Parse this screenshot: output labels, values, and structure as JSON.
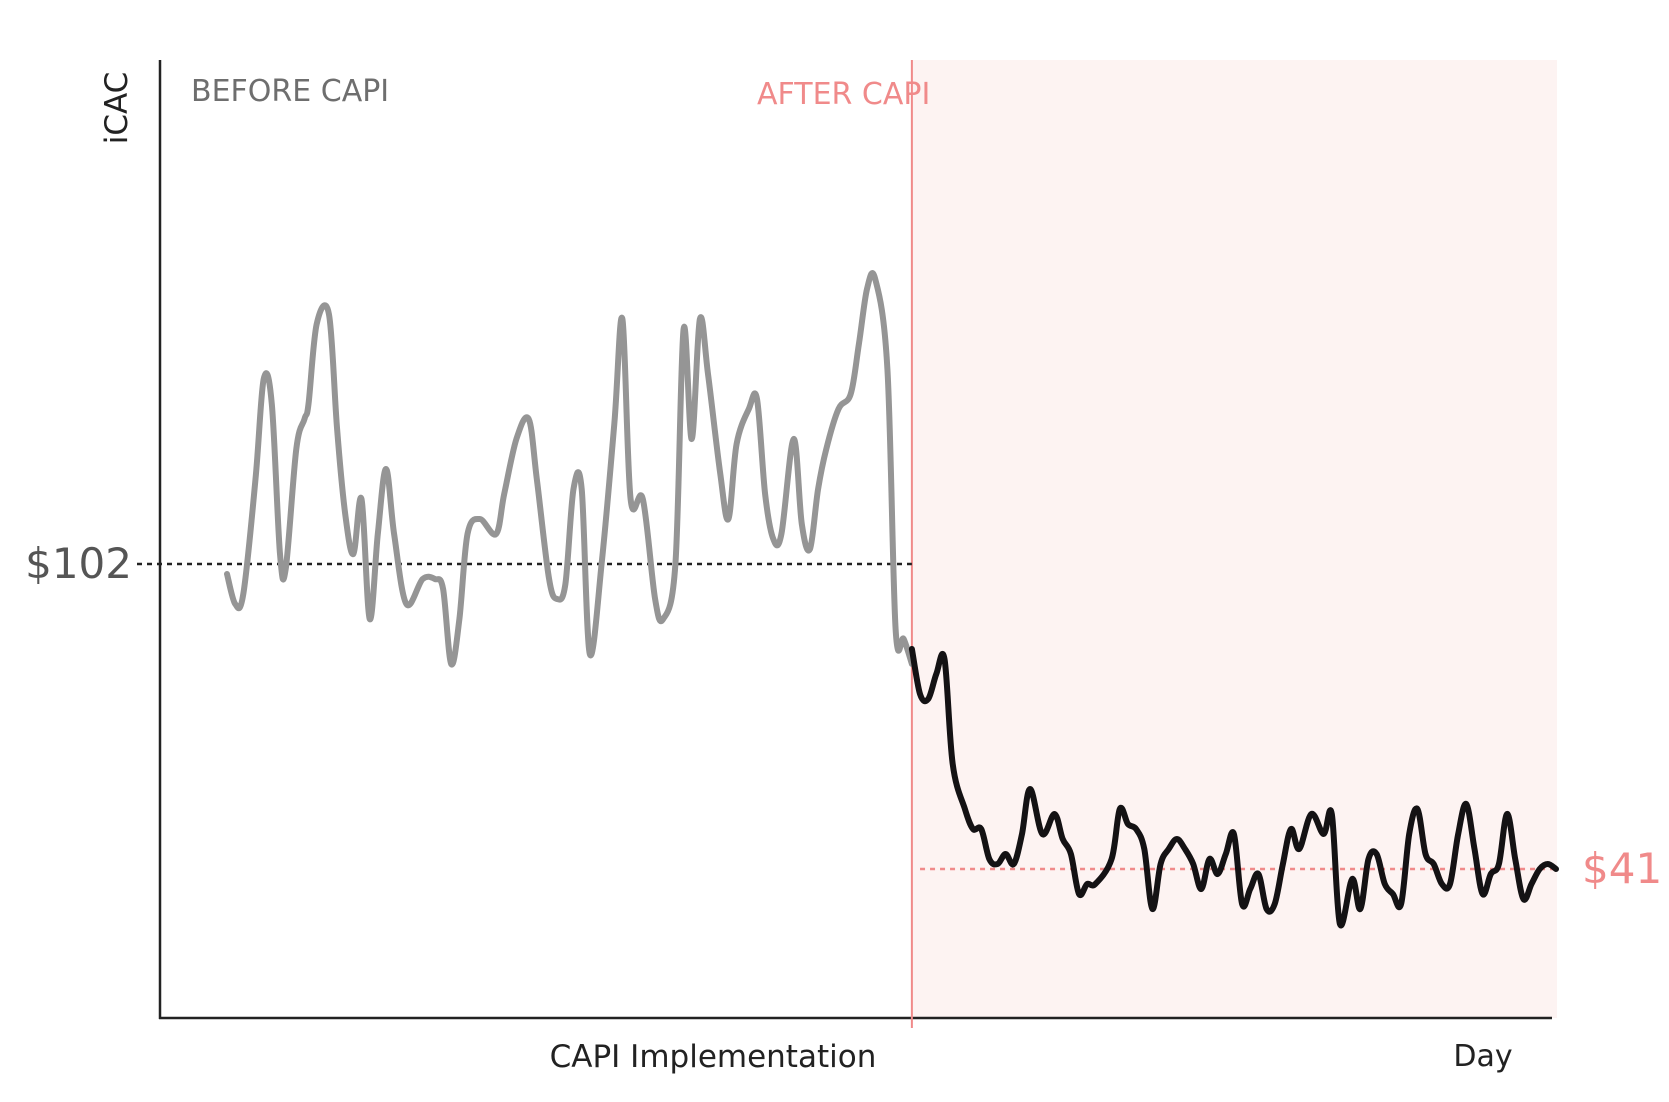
{
  "chart_data": {
    "type": "line",
    "ylabel": "iCAC",
    "xlabel": "Day",
    "regions": [
      {
        "label": "BEFORE CAPI",
        "color": "#6e6e6e"
      },
      {
        "label": "AFTER CAPI",
        "color": "#f08a8a",
        "shade": "#fdf3f2"
      }
    ],
    "event_label": "CAPI Implementation",
    "event_x": 84.0,
    "x_range": [
      0,
      163
    ],
    "y_range": [
      0,
      210
    ],
    "references": [
      {
        "label": "$102",
        "value": 102,
        "x_start": 0,
        "x_end": 84,
        "color": "#222222"
      },
      {
        "label": "$41",
        "value": 41,
        "x_start": 85,
        "x_end": 163,
        "color": "#f08a8a"
      }
    ],
    "series": [
      {
        "color": "#959595",
        "x": [
          0.0,
          1.0,
          2.0,
          3.5,
          4.5,
          5.5,
          6.5,
          7.2,
          8.5,
          9.5,
          10.0,
          11.0,
          12.5,
          13.5,
          14.5,
          15.5,
          16.5,
          17.5,
          18.5,
          19.5,
          20.5,
          22.0,
          24.0,
          25.5,
          26.5,
          27.5,
          28.5,
          29.5,
          31.0,
          33.0,
          34.0,
          35.5,
          37.0,
          38.0,
          39.5,
          40.5,
          41.5,
          42.5,
          43.5,
          44.5,
          46.0,
          47.5,
          48.5,
          49.5,
          51.0,
          52.5,
          53.5,
          55.0,
          56.0,
          57.0,
          58.0,
          59.0,
          60.5,
          61.5,
          62.5,
          64.0,
          65.0,
          66.0,
          67.0,
          68.0,
          69.5,
          70.5,
          71.5,
          72.5,
          73.5,
          75.0,
          76.5,
          77.5,
          78.5,
          79.5,
          81.0,
          82.0,
          83.0,
          84.0
        ],
        "y": [
          100,
          94,
          96,
          119,
          139,
          134,
          104,
          101,
          125,
          131,
          134,
          150,
          152,
          129,
          112,
          104,
          115,
          91,
          108,
          121,
          108,
          94,
          99,
          99,
          97,
          82,
          91,
          108,
          111,
          108,
          116,
          127,
          131,
          119,
          99,
          95,
          98,
          117,
          117,
          84,
          103,
          130,
          151,
          115,
          115,
          95,
          91,
          102,
          149,
          127,
          151,
          140,
          120,
          111,
          126,
          133,
          135,
          116,
          107,
          108,
          127,
          110,
          105,
          117,
          125,
          133,
          136,
          146,
          157,
          159,
          141,
          89,
          87,
          82
        ]
      },
      {
        "color": "#141214",
        "x": [
          84.0,
          85.0,
          86.0,
          87.0,
          88.0,
          89.0,
          90.5,
          91.5,
          92.5,
          93.5,
          94.5,
          95.5,
          96.5,
          97.5,
          98.5,
          100.0,
          101.5,
          102.5,
          103.5,
          104.5,
          105.5,
          106.5,
          108.5,
          109.5,
          110.5,
          111.5,
          112.5,
          113.5,
          114.5,
          115.5,
          116.5,
          117.5,
          118.5,
          119.5,
          120.5,
          121.5,
          122.5,
          123.5,
          124.5,
          125.5,
          126.5,
          127.5,
          128.5,
          129.5,
          130.5,
          131.5,
          133.0,
          134.5,
          135.5,
          136.5,
          138.0,
          139.0,
          140.0,
          141.0,
          142.0,
          143.0,
          144.0,
          145.0,
          146.0,
          147.0,
          148.0,
          149.0,
          150.0,
          151.0,
          152.0,
          153.0,
          154.0,
          155.0,
          156.0,
          157.0,
          158.0,
          159.0,
          160.0,
          161.0,
          162.0,
          163.0
        ],
        "y": [
          85,
          76,
          75,
          80,
          83,
          62,
          53,
          49,
          49,
          43,
          42,
          44,
          42,
          48,
          57,
          48,
          52,
          47,
          44,
          36,
          38,
          38,
          43,
          53,
          50,
          49,
          45,
          33,
          42,
          45,
          47,
          45,
          42,
          37,
          43,
          40,
          44,
          48,
          34,
          37,
          40,
          33,
          34,
          42,
          49,
          45,
          52,
          48,
          52,
          30,
          39,
          33,
          43,
          44,
          38,
          36,
          34,
          48,
          53,
          44,
          42,
          38,
          38,
          48,
          54,
          45,
          36,
          40,
          42,
          52,
          43,
          35,
          38,
          41,
          42,
          41
        ]
      }
    ]
  }
}
